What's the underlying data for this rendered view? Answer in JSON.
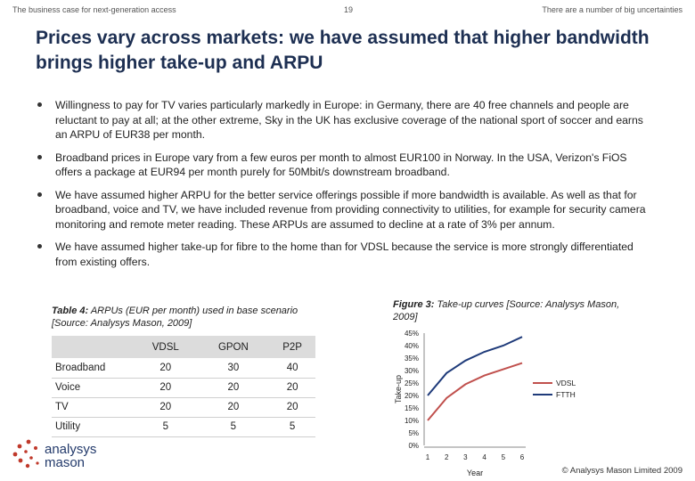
{
  "header": {
    "left": "The business case for next-generation access",
    "page_number": "19",
    "right": "There are a number of big uncertainties"
  },
  "title": "Prices vary across markets: we have assumed that higher bandwidth brings higher take-up and ARPU",
  "bullets": [
    "Willingness to pay for TV varies particularly markedly in Europe: in Germany, there are 40 free channels and people are reluctant to pay at all; at the other extreme, Sky in the UK has exclusive coverage of the national sport of soccer and earns an ARPU of EUR38 per month.",
    "Broadband prices in Europe vary from a few euros per month to almost EUR100 in Norway. In the USA, Verizon's FiOS offers a package at EUR94 per month purely for 50Mbit/s downstream broadband.",
    "We have assumed higher ARPU for the better service offerings possible if more bandwidth is available. As well as that for broadband, voice and TV, we have included revenue from providing connectivity to utilities, for example for security camera monitoring and remote meter reading. These ARPUs are assumed to decline at a rate of 3% per annum.",
    "We have assumed higher take-up for fibre to the home than for VDSL because the service is more strongly differentiated from existing offers."
  ],
  "table": {
    "caption_label": "Table 4:",
    "caption_text": "ARPUs (EUR per month) used in base scenario [Source: Analysys Mason, 2009]",
    "columns": [
      "",
      "VDSL",
      "GPON",
      "P2P"
    ],
    "rows": [
      [
        "Broadband",
        "20",
        "30",
        "40"
      ],
      [
        "Voice",
        "20",
        "20",
        "20"
      ],
      [
        "TV",
        "20",
        "20",
        "20"
      ],
      [
        "Utility",
        "5",
        "5",
        "5"
      ]
    ]
  },
  "figure": {
    "caption_label": "Figure 3:",
    "caption_text": "Take-up curves  [Source: Analysys Mason, 2009]"
  },
  "chart_data": {
    "type": "line",
    "title": "",
    "xlabel": "Year",
    "ylabel": "Take-up",
    "x": [
      1,
      2,
      3,
      4,
      5,
      6
    ],
    "ylim": [
      0,
      45
    ],
    "yticks": [
      "0%",
      "5%",
      "10%",
      "15%",
      "20%",
      "25%",
      "30%",
      "35%",
      "40%",
      "45%"
    ],
    "legend_position": "right",
    "grid": false,
    "series": [
      {
        "name": "VDSL",
        "color": "#c0504d",
        "values": [
          10,
          19,
          24.5,
          28,
          30.5,
          33
        ]
      },
      {
        "name": "FTTH",
        "color": "#1f3b7a",
        "values": [
          20,
          29,
          34,
          37.5,
          40,
          43.5
        ]
      }
    ]
  },
  "logo": {
    "line1": "analysys",
    "line2": "mason"
  },
  "footer": "© Analysys Mason Limited 2009"
}
